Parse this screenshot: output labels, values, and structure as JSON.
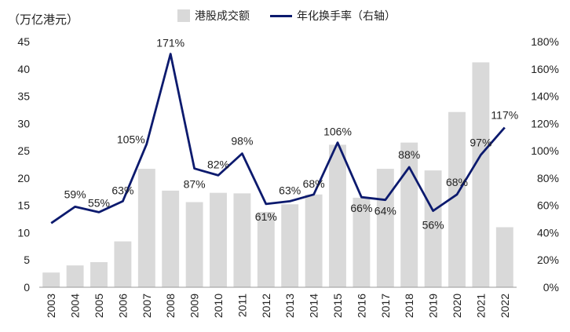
{
  "chart_data": {
    "type": "bar+line",
    "left_axis_unit": "（万亿港元）",
    "categories": [
      "2003",
      "2004",
      "2005",
      "2006",
      "2007",
      "2008",
      "2009",
      "2010",
      "2011",
      "2012",
      "2013",
      "2014",
      "2015",
      "2016",
      "2017",
      "2018",
      "2019",
      "2020",
      "2021",
      "2022"
    ],
    "series": [
      {
        "name": "港股成交额",
        "type": "bar",
        "axis": "left",
        "color": "#d9d9d9",
        "values": [
          2.7,
          4.0,
          4.6,
          8.4,
          21.7,
          17.7,
          15.6,
          17.3,
          17.2,
          13.8,
          15.2,
          17.0,
          26.1,
          16.4,
          21.7,
          26.5,
          21.4,
          32.1,
          41.2,
          11.0
        ]
      },
      {
        "name": "年化换手率（右轴）",
        "type": "line",
        "axis": "right",
        "color": "#0c1a6e",
        "values": [
          47,
          59,
          55,
          63,
          105,
          171,
          87,
          82,
          98,
          61,
          63,
          68,
          106,
          66,
          64,
          88,
          56,
          68,
          97,
          117
        ],
        "labels": [
          "",
          "59%",
          "55%",
          "63%",
          "105%",
          "171%",
          "87%",
          "82%",
          "98%",
          "61%",
          "63%",
          "68%",
          "106%",
          "66%",
          "64%",
          "88%",
          "56%",
          "68%",
          "97%",
          "117%"
        ]
      }
    ],
    "left_axis": {
      "min": 0,
      "max": 45,
      "step": 5,
      "ticks": [
        "0",
        "5",
        "10",
        "15",
        "20",
        "25",
        "30",
        "35",
        "40",
        "45"
      ]
    },
    "right_axis": {
      "min": 0,
      "max": 180,
      "step": 20,
      "ticks": [
        "0%",
        "20%",
        "40%",
        "60%",
        "80%",
        "100%",
        "120%",
        "140%",
        "160%",
        "180%"
      ]
    },
    "grid": false,
    "legend_placement": "top-center"
  }
}
